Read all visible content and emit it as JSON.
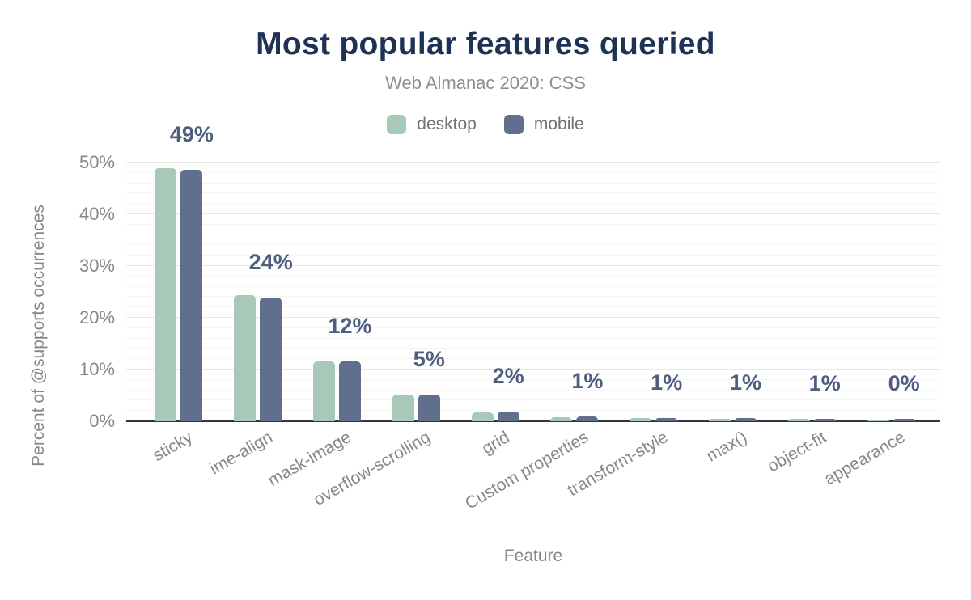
{
  "chart_data": {
    "type": "bar",
    "title": "Most popular features queried",
    "subtitle": "Web Almanac 2020: CSS",
    "xlabel": "Feature",
    "ylabel": "Percent of @supports occurrences",
    "categories": [
      "sticky",
      "ime-align",
      "mask-image",
      "overflow-scrolling",
      "grid",
      "Custom properties",
      "transform-style",
      "max()",
      "object-fit",
      "appearance"
    ],
    "series": [
      {
        "name": "desktop",
        "color": "#a8c9b7",
        "values": [
          48.9,
          24.4,
          11.5,
          5.2,
          1.7,
          0.8,
          0.7,
          0.4,
          0.4,
          0.1
        ]
      },
      {
        "name": "mobile",
        "color": "#5f6f8c",
        "values": [
          48.6,
          23.9,
          11.6,
          5.2,
          1.9,
          0.9,
          0.7,
          0.6,
          0.5,
          0.4
        ]
      }
    ],
    "data_labels": [
      "49%",
      "24%",
      "12%",
      "5%",
      "2%",
      "1%",
      "1%",
      "1%",
      "1%",
      "0%"
    ],
    "data_labels_follow_series": "mobile",
    "y_ticks": [
      "0%",
      "10%",
      "20%",
      "30%",
      "40%",
      "50%"
    ],
    "ylim": [
      0,
      52
    ],
    "grid": "horizontal; minor every 2%, major every 10%",
    "legend_position": "top-center"
  },
  "colors": {
    "title": "#1e3254",
    "subtitle": "#8a8d93",
    "data_label": "#4e5e7e",
    "axis_text": "#84878d",
    "legend_text": "#6f737b",
    "axis_line": "#35363b",
    "grid_minor": "#f5f5f5",
    "grid_major": "#e8e8e8",
    "background": "#ffffff",
    "desktop_bar": "#a8c9b7",
    "mobile_bar": "#5f6f8c"
  }
}
